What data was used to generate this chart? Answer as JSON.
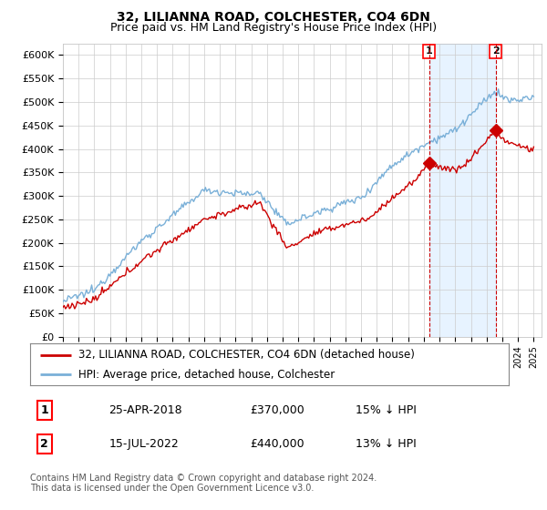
{
  "title": "32, LILIANNA ROAD, COLCHESTER, CO4 6DN",
  "subtitle": "Price paid vs. HM Land Registry's House Price Index (HPI)",
  "ylabel_ticks": [
    "£0",
    "£50K",
    "£100K",
    "£150K",
    "£200K",
    "£250K",
    "£300K",
    "£350K",
    "£400K",
    "£450K",
    "£500K",
    "£550K",
    "£600K"
  ],
  "ylim": [
    0,
    625000
  ],
  "yticks": [
    0,
    50000,
    100000,
    150000,
    200000,
    250000,
    300000,
    350000,
    400000,
    450000,
    500000,
    550000,
    600000
  ],
  "legend_line1": "32, LILIANNA ROAD, COLCHESTER, CO4 6DN (detached house)",
  "legend_line2": "HPI: Average price, detached house, Colchester",
  "transaction1_date": "25-APR-2018",
  "transaction1_price": "£370,000",
  "transaction1_hpi": "15% ↓ HPI",
  "transaction2_date": "15-JUL-2022",
  "transaction2_price": "£440,000",
  "transaction2_hpi": "13% ↓ HPI",
  "footnote": "Contains HM Land Registry data © Crown copyright and database right 2024.\nThis data is licensed under the Open Government Licence v3.0.",
  "hpi_color": "#7ab0d8",
  "hpi_shade_color": "#ddeeff",
  "price_color": "#cc0000",
  "vline_color": "#cc0000",
  "background_color": "#ffffff",
  "grid_color": "#cccccc",
  "title_fontsize": 10,
  "subtitle_fontsize": 9,
  "tick_fontsize": 8,
  "legend_fontsize": 8.5
}
